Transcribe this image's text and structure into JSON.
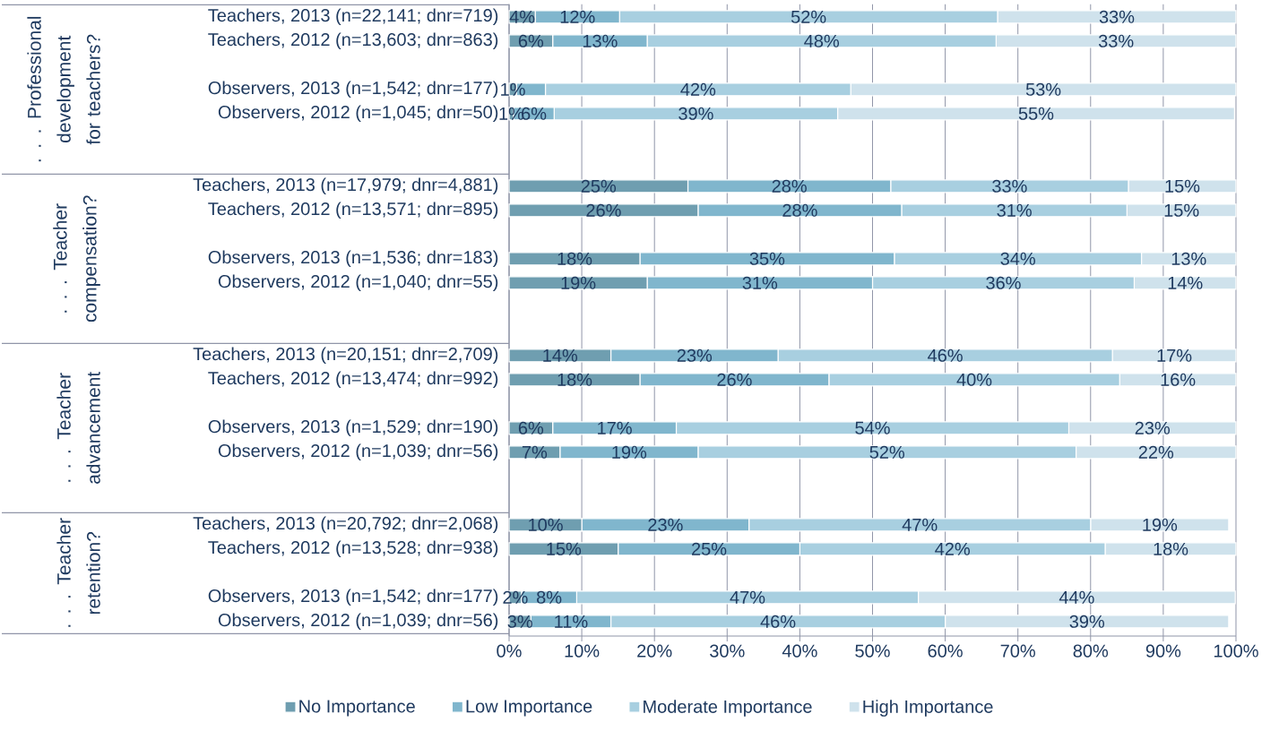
{
  "chart_data": {
    "type": "bar",
    "orientation": "horizontal",
    "stacked": true,
    "categories": [
      "Teachers, 2013 (n=22,141; dnr=719)",
      "Teachers, 2012 (n=13,603; dnr=863)",
      null,
      "Observers, 2013 (n=1,542; dnr=177)",
      "Observers, 2012 (n=1,045; dnr=50)",
      null,
      null,
      "Teachers, 2013 (n=17,979; dnr=4,881)",
      "Teachers, 2012 (n=13,571; dnr=895)",
      null,
      "Observers, 2013 (n=1,536; dnr=183)",
      "Observers, 2012 (n=1,040; dnr=55)",
      null,
      null,
      "Teachers, 2013 (n=20,151; dnr=2,709)",
      "Teachers, 2012 (n=13,474; dnr=992)",
      null,
      "Observers, 2013 (n=1,529; dnr=190)",
      "Observers, 2012 (n=1,039; dnr=56)",
      null,
      null,
      "Teachers, 2013 (n=20,792; dnr=2,068)",
      "Teachers, 2012 (n=13,528; dnr=938)",
      null,
      "Observers, 2013 (n=1,542; dnr=177)",
      "Observers, 2012 (n=1,039; dnr=56)"
    ],
    "series": [
      {
        "name": "No Importance",
        "color": "#6f9eb0",
        "values": [
          3.6,
          6,
          null,
          1,
          0.6,
          null,
          null,
          24.6,
          26,
          null,
          18,
          19,
          null,
          null,
          14,
          18,
          null,
          6,
          7,
          null,
          null,
          10,
          15,
          null,
          1.7,
          3
        ],
        "value_labels": [
          "4%",
          "6%",
          null,
          "1%",
          "1%",
          null,
          null,
          "25%",
          "26%",
          null,
          "18%",
          "19%",
          null,
          null,
          "14%",
          "18%",
          null,
          "6%",
          "7%",
          null,
          null,
          "10%",
          "15%",
          null,
          "2%",
          "3%"
        ]
      },
      {
        "name": "Low Importance",
        "color": "#80b6cd",
        "values": [
          11.6,
          13,
          null,
          4,
          5.6,
          null,
          null,
          27.9,
          28,
          null,
          35,
          31,
          null,
          null,
          23,
          26,
          null,
          17,
          19,
          null,
          null,
          23,
          25,
          null,
          7.6,
          11
        ],
        "value_labels": [
          "12%",
          "13%",
          null,
          null,
          "6%",
          null,
          null,
          "28%",
          "28%",
          null,
          "35%",
          "31%",
          null,
          null,
          "23%",
          "26%",
          null,
          "17%",
          "19%",
          null,
          null,
          "23%",
          "25%",
          null,
          "8%",
          "11%"
        ]
      },
      {
        "name": "Moderate Importance",
        "color": "#a8cfe0",
        "values": [
          52,
          48,
          null,
          42,
          39,
          null,
          null,
          32.7,
          31,
          null,
          34,
          36,
          null,
          null,
          46,
          40,
          null,
          54,
          52,
          null,
          null,
          47,
          42,
          null,
          47,
          46
        ],
        "value_labels": [
          "52%",
          "48%",
          null,
          "42%",
          "39%",
          null,
          null,
          "33%",
          "31%",
          null,
          "34%",
          "36%",
          null,
          null,
          "46%",
          "40%",
          null,
          "54%",
          "52%",
          null,
          null,
          "47%",
          "42%",
          null,
          "47%",
          "46%"
        ]
      },
      {
        "name": "High Importance",
        "color": "#cfe2ec",
        "values": [
          32.8,
          33,
          null,
          53,
          54.6,
          null,
          null,
          14.8,
          15,
          null,
          13,
          14,
          null,
          null,
          17,
          16,
          null,
          23,
          22,
          null,
          null,
          19,
          18,
          null,
          43.6,
          39
        ],
        "value_labels": [
          "33%",
          "33%",
          null,
          "53%",
          "55%",
          null,
          null,
          "15%",
          "15%",
          null,
          "13%",
          "14%",
          null,
          null,
          "17%",
          "16%",
          null,
          "23%",
          "22%",
          null,
          null,
          "19%",
          "18%",
          null,
          "44%",
          "39%"
        ]
      }
    ],
    "xlim": [
      0,
      100
    ],
    "xticks": [
      {
        "value": 0,
        "label": "0%"
      },
      {
        "value": 10,
        "label": "10%"
      },
      {
        "value": 20,
        "label": "20%"
      },
      {
        "value": 30,
        "label": "30%"
      },
      {
        "value": 40,
        "label": "40%"
      },
      {
        "value": 50,
        "label": "50%"
      },
      {
        "value": 60,
        "label": "60%"
      },
      {
        "value": 70,
        "label": "70%"
      },
      {
        "value": 80,
        "label": "80%"
      },
      {
        "value": 90,
        "label": "90%"
      },
      {
        "value": 100,
        "label": "100%"
      }
    ],
    "annotations": [
      ". . . Professional development for teachers?",
      ". . . Teacher compensation?",
      ". . . Teacher advancement",
      ". . . Teacher retention?"
    ],
    "grid": "x",
    "legend": "bottom"
  }
}
